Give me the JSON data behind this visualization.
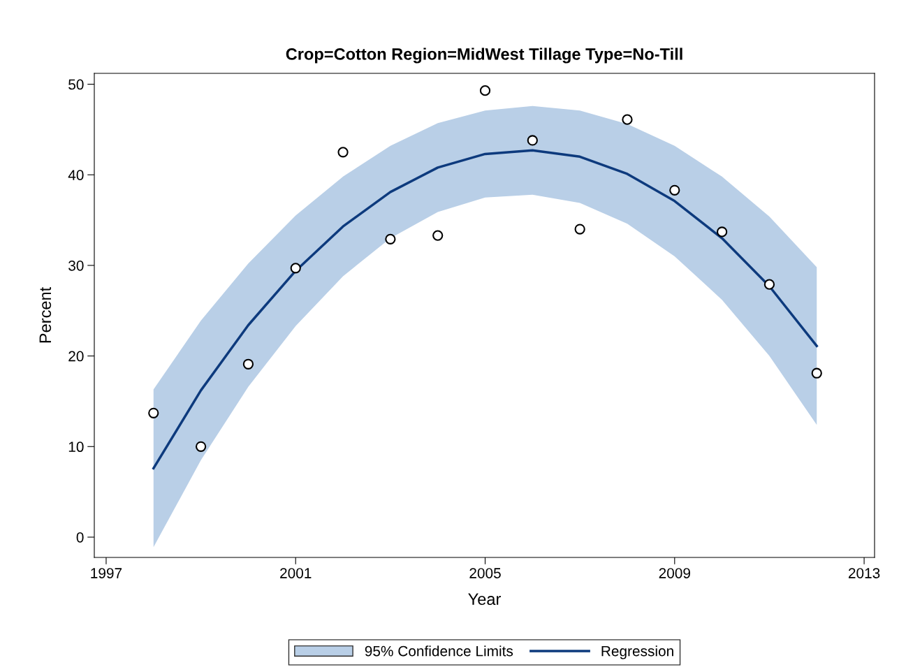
{
  "chart_data": {
    "type": "scatter",
    "title": "Crop=Cotton Region=MidWest Tillage Type=No-Till",
    "xlabel": "Year",
    "ylabel": "Percent",
    "x": [
      1998,
      1999,
      2000,
      2001,
      2002,
      2003,
      2004,
      2005,
      2006,
      2007,
      2008,
      2009,
      2010,
      2011,
      2012
    ],
    "series": [
      {
        "type": "line",
        "name": "Regression",
        "color": "#0d3a7d",
        "values": [
          7.6,
          16.2,
          23.4,
          29.4,
          34.3,
          38.1,
          40.8,
          42.3,
          42.7,
          42.0,
          40.1,
          37.1,
          33.0,
          27.7,
          21.1
        ],
        "lower": [
          -1.1,
          8.5,
          16.6,
          23.3,
          28.8,
          33.0,
          35.9,
          37.5,
          37.8,
          36.9,
          34.6,
          31.0,
          26.2,
          20.0,
          12.4
        ],
        "upper": [
          16.3,
          23.9,
          30.2,
          35.5,
          39.8,
          43.2,
          45.7,
          47.1,
          47.6,
          47.1,
          45.6,
          43.2,
          39.8,
          35.4,
          29.8
        ]
      },
      {
        "color": "#000000",
        "marker": "circle",
        "values": [
          13.7,
          10.0,
          19.1,
          29.7,
          42.5,
          32.9,
          33.3,
          49.3,
          43.8,
          34.0,
          46.1,
          38.3,
          33.7,
          27.9,
          18.1
        ]
      }
    ],
    "xlim": [
      1996.75,
      2013.22
    ],
    "xticks": [
      1997,
      2001,
      2005,
      2009,
      2013
    ],
    "ylim": [
      -2.24,
      51.2
    ],
    "yticks": [
      0,
      10,
      20,
      30,
      40,
      50
    ],
    "annotations": [
      "95% Confidence Limits"
    ],
    "grid": false,
    "legend": "bottom"
  }
}
